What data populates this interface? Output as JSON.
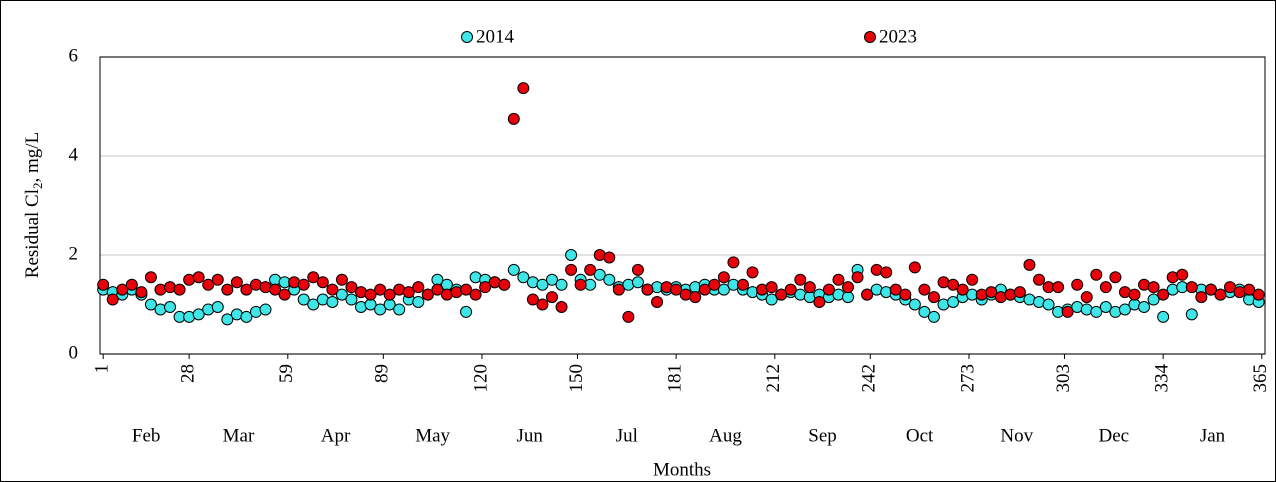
{
  "chart_data": {
    "type": "scatter",
    "ylabel": [
      "Residual Cl",
      "2",
      ", mg/L"
    ],
    "xlabel": "Months",
    "month_labels": [
      "Feb",
      "Mar",
      "Apr",
      "May",
      "Jun",
      "Jul",
      "Aug",
      "Sep",
      "Oct",
      "Nov",
      "Dec",
      "Jan"
    ],
    "x": [
      1,
      4,
      7,
      10,
      13,
      16,
      19,
      22,
      25,
      28,
      31,
      34,
      37,
      40,
      43,
      46,
      49,
      52,
      55,
      58,
      61,
      64,
      67,
      70,
      73,
      76,
      79,
      82,
      85,
      88,
      91,
      94,
      97,
      100,
      103,
      106,
      109,
      112,
      115,
      118,
      121,
      124,
      127,
      130,
      133,
      136,
      139,
      142,
      145,
      148,
      151,
      154,
      157,
      160,
      163,
      166,
      169,
      172,
      175,
      178,
      181,
      184,
      187,
      190,
      193,
      196,
      199,
      202,
      205,
      208,
      211,
      214,
      217,
      220,
      223,
      226,
      229,
      232,
      235,
      238,
      241,
      244,
      247,
      250,
      253,
      256,
      259,
      262,
      265,
      268,
      271,
      274,
      277,
      280,
      283,
      286,
      289,
      292,
      295,
      298,
      301,
      304,
      307,
      310,
      313,
      316,
      319,
      322,
      325,
      328,
      331,
      334,
      337,
      340,
      343,
      346,
      349,
      352,
      355,
      358,
      361,
      364
    ],
    "series": [
      {
        "name": "2014",
        "color": "#3ee6e8",
        "values": [
          1.3,
          1.25,
          1.2,
          1.3,
          1.2,
          1.0,
          0.9,
          0.95,
          0.75,
          0.75,
          0.8,
          0.9,
          0.95,
          0.7,
          0.8,
          0.75,
          0.85,
          0.9,
          1.5,
          1.45,
          1.3,
          1.1,
          1.0,
          1.1,
          1.05,
          1.2,
          1.1,
          0.95,
          1.0,
          0.9,
          1.0,
          0.9,
          1.1,
          1.05,
          1.2,
          1.5,
          1.4,
          1.3,
          0.85,
          1.55,
          1.5,
          1.45,
          1.4,
          1.7,
          1.55,
          1.45,
          1.4,
          1.5,
          1.4,
          2.0,
          1.5,
          1.4,
          1.6,
          1.5,
          1.35,
          1.4,
          1.45,
          1.3,
          1.35,
          1.3,
          1.35,
          1.3,
          1.35,
          1.4,
          1.3,
          1.3,
          1.4,
          1.3,
          1.25,
          1.2,
          1.1,
          1.2,
          1.25,
          1.2,
          1.15,
          1.2,
          1.15,
          1.2,
          1.15,
          1.7,
          1.2,
          1.3,
          1.25,
          1.2,
          1.1,
          1.0,
          0.85,
          0.75,
          1.0,
          1.05,
          1.15,
          1.2,
          1.1,
          1.2,
          1.3,
          1.2,
          1.15,
          1.1,
          1.05,
          1.0,
          0.85,
          0.9,
          0.95,
          0.9,
          0.85,
          0.95,
          0.85,
          0.9,
          1.0,
          0.95,
          1.1,
          0.75,
          1.3,
          1.35,
          0.8,
          1.3,
          1.3,
          1.2,
          1.25,
          1.3,
          1.1,
          1.05
        ]
      },
      {
        "name": "2023",
        "color": "#e8000b",
        "values": [
          1.4,
          1.1,
          1.3,
          1.4,
          1.25,
          1.55,
          1.3,
          1.35,
          1.3,
          1.5,
          1.55,
          1.4,
          1.5,
          1.3,
          1.45,
          1.3,
          1.4,
          1.35,
          1.3,
          1.2,
          1.45,
          1.4,
          1.55,
          1.45,
          1.3,
          1.5,
          1.35,
          1.25,
          1.2,
          1.3,
          1.2,
          1.3,
          1.25,
          1.35,
          1.2,
          1.3,
          1.2,
          1.25,
          1.3,
          1.2,
          1.35,
          1.45,
          1.4,
          4.75,
          5.37,
          1.1,
          1.0,
          1.15,
          0.95,
          1.7,
          1.4,
          1.7,
          2.0,
          1.95,
          1.3,
          0.75,
          1.7,
          1.3,
          1.05,
          1.35,
          1.3,
          1.2,
          1.15,
          1.3,
          1.4,
          1.55,
          1.85,
          1.4,
          1.65,
          1.3,
          1.35,
          1.2,
          1.3,
          1.5,
          1.35,
          1.05,
          1.3,
          1.5,
          1.35,
          1.55,
          1.2,
          1.7,
          1.65,
          1.3,
          1.2,
          1.75,
          1.3,
          1.15,
          1.45,
          1.4,
          1.3,
          1.5,
          1.2,
          1.25,
          1.15,
          1.2,
          1.25,
          1.8,
          1.5,
          1.35,
          1.35,
          0.85,
          1.4,
          1.15,
          1.6,
          1.35,
          1.55,
          1.25,
          1.2,
          1.4,
          1.35,
          1.2,
          1.55,
          1.6,
          1.35,
          1.15,
          1.3,
          1.2,
          1.35,
          1.25,
          1.3,
          1.2
        ]
      }
    ],
    "xlim": [
      0,
      366
    ],
    "xticks": [
      1,
      28,
      59,
      89,
      120,
      150,
      181,
      212,
      242,
      273,
      303,
      334,
      365
    ],
    "ylim": [
      0,
      6
    ],
    "yticks": [
      0,
      2,
      4,
      6
    ],
    "grid": true
  }
}
